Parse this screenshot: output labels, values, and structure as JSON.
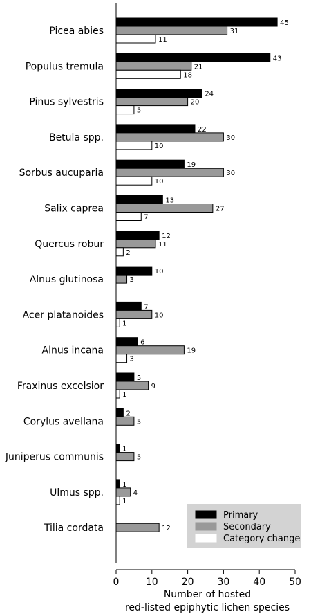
{
  "chart_data": {
    "type": "bar",
    "orientation": "horizontal",
    "categories": [
      "Picea abies",
      "Populus tremula",
      "Pinus sylvestris",
      "Betula spp.",
      "Sorbus aucuparia",
      "Salix caprea",
      "Quercus robur",
      "Alnus glutinosa",
      "Acer platanoides",
      "Alnus incana",
      "Fraxinus excelsior",
      "Corylus avellana",
      "Juniperus communis",
      "Ulmus spp.",
      "Tilia cordata"
    ],
    "series": [
      {
        "name": "Primary",
        "color": "#000000",
        "values": [
          45,
          43,
          24,
          22,
          19,
          13,
          12,
          10,
          7,
          6,
          5,
          2,
          1,
          1,
          0
        ]
      },
      {
        "name": "Secondary",
        "color": "#999999",
        "values": [
          31,
          21,
          20,
          30,
          30,
          27,
          11,
          3,
          10,
          19,
          9,
          5,
          5,
          4,
          12
        ]
      },
      {
        "name": "Category change",
        "color": "#ffffff",
        "values": [
          11,
          18,
          5,
          10,
          10,
          7,
          2,
          0,
          1,
          3,
          1,
          0,
          0,
          1,
          0
        ]
      }
    ],
    "value_labels": [
      [
        "45",
        "31",
        "11"
      ],
      [
        "43",
        "21",
        "18"
      ],
      [
        "24",
        "20",
        "5"
      ],
      [
        "22",
        "30",
        "10"
      ],
      [
        "19",
        "30",
        "10"
      ],
      [
        "13",
        "27",
        "7"
      ],
      [
        "12",
        "11",
        "2"
      ],
      [
        "10",
        "3",
        ""
      ],
      [
        "7",
        "10",
        "1"
      ],
      [
        "6",
        "19",
        "3"
      ],
      [
        "5",
        "9",
        "1"
      ],
      [
        "2",
        "5",
        ""
      ],
      [
        "1",
        "5",
        ""
      ],
      [
        "1",
        "4",
        "1"
      ],
      [
        "",
        "12",
        ""
      ]
    ],
    "xlabel_line1": "Number of hosted",
    "xlabel_line2": "red-listed epiphytic lichen species",
    "xlim": [
      0,
      50
    ],
    "xticks": [
      0,
      10,
      20,
      30,
      40,
      50
    ],
    "grid": false,
    "legend_position": "bottom-right",
    "legend_background": "#d3d3d3"
  }
}
